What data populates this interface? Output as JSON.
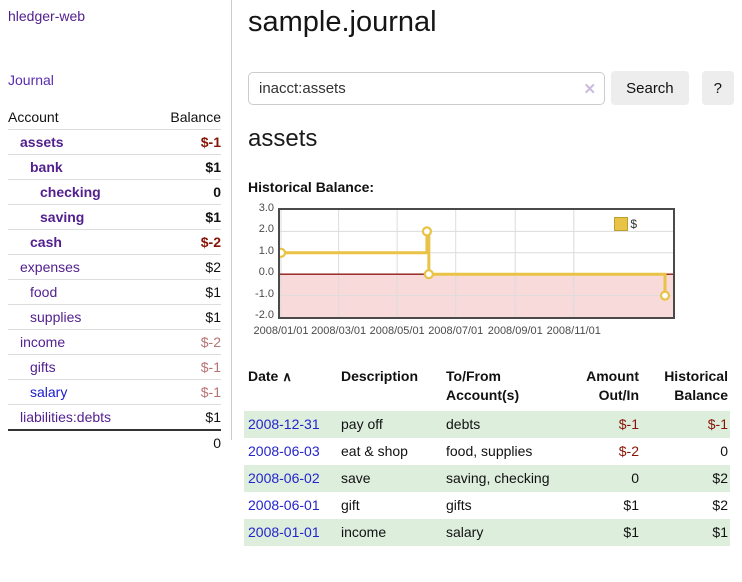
{
  "app": {
    "brand": "hledger-web",
    "nav_journal": "Journal"
  },
  "sidebar": {
    "header": {
      "account": "Account",
      "balance": "Balance"
    },
    "accounts": [
      {
        "name": "assets",
        "balance": "$-1",
        "level": 1,
        "bold": true,
        "neg": "strong"
      },
      {
        "name": "bank",
        "balance": "$1",
        "level": 2,
        "bold": true
      },
      {
        "name": "checking",
        "balance": "0",
        "level": 3,
        "bold": true
      },
      {
        "name": "saving",
        "balance": "$1",
        "level": 3,
        "bold": true
      },
      {
        "name": "cash",
        "balance": "$-2",
        "level": 2,
        "bold": true,
        "neg": "strong"
      },
      {
        "name": "expenses",
        "balance": "$2",
        "level": 1
      },
      {
        "name": "food",
        "balance": "$1",
        "level": 2
      },
      {
        "name": "supplies",
        "balance": "$1",
        "level": 2
      },
      {
        "name": "income",
        "balance": "$-2",
        "level": 1,
        "neg": "soft"
      },
      {
        "name": "gifts",
        "balance": "$-1",
        "level": 2,
        "neg": "soft"
      },
      {
        "name": "salary",
        "balance": "$-1",
        "level": 2,
        "neg": "soft",
        "link_color": "blue"
      },
      {
        "name": "liabilities:debts",
        "balance": "$1",
        "level": 1
      }
    ],
    "total": "0"
  },
  "header": {
    "title": "sample.journal"
  },
  "search": {
    "value": "inacct:assets",
    "clear_icon": "✕",
    "button_label": "Search",
    "help_label": "?"
  },
  "account_page": {
    "heading": "assets",
    "chart_label": "Historical Balance:"
  },
  "chart_data": {
    "type": "line",
    "step": true,
    "title": "Historical Balance:",
    "series": [
      {
        "name": "$",
        "color": "#e9c345",
        "points": [
          [
            "2008-01-01",
            1
          ],
          [
            "2008-06-01",
            2
          ],
          [
            "2008-06-03",
            0
          ],
          [
            "2008-12-31",
            -1
          ]
        ]
      }
    ],
    "ylim": [
      -2,
      3
    ],
    "y_tick_labels": [
      "3.0",
      "2.0",
      "1.0",
      "0.0",
      "-1.0",
      "-2.0"
    ],
    "x_tick_labels": [
      "2008/01/01",
      "2008/03/01",
      "2008/05/01",
      "2008/07/01",
      "2008/09/01",
      "2008/11/01"
    ],
    "grid": true,
    "negative_region_color": "#f9dada",
    "zero_line_color": "#8c1a14",
    "grid_color": "#dcdcdc",
    "legend": {
      "label": "$",
      "swatch_color": "#e9c345",
      "position": "top-right"
    }
  },
  "table": {
    "sort_icon": "∧",
    "headers": [
      "Date",
      "Description",
      "To/From Account(s)",
      "Amount Out/In",
      "Historical Balance"
    ],
    "rows": [
      {
        "date": "2008-12-31",
        "description": "pay off",
        "accounts": "debts",
        "amount": "$-1",
        "balance": "$-1"
      },
      {
        "date": "2008-06-03",
        "description": "eat & shop",
        "accounts": "food, supplies",
        "amount": "$-2",
        "balance": "0"
      },
      {
        "date": "2008-06-02",
        "description": "save",
        "accounts": "saving, checking",
        "amount": "0",
        "balance": "$2"
      },
      {
        "date": "2008-06-01",
        "description": "gift",
        "accounts": "gifts",
        "amount": "$1",
        "balance": "$2"
      },
      {
        "date": "2008-01-01",
        "description": "income",
        "accounts": "salary",
        "amount": "$1",
        "balance": "$1"
      }
    ]
  }
}
